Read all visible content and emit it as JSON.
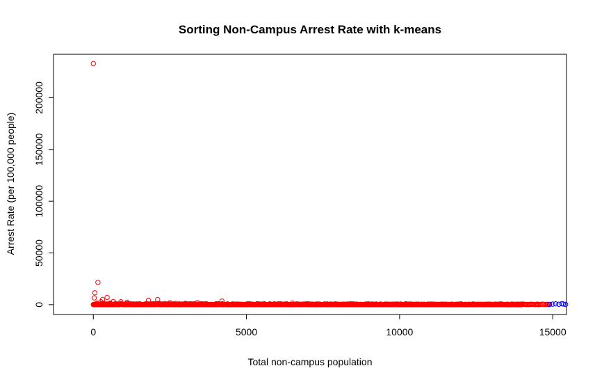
{
  "chart_data": {
    "type": "scatter",
    "title": "Sorting Non-Campus Arrest Rate with k-means",
    "xlabel": "Total non-campus population",
    "ylabel": "Arrest Rate (per 100,000 people)",
    "xlim": [
      -1300,
      15450
    ],
    "ylim": [
      -9500,
      242000
    ],
    "xticks": [
      0,
      5000,
      10000,
      15000
    ],
    "yticks": [
      0,
      50000,
      100000,
      150000,
      200000
    ],
    "xtick_labels": [
      "0",
      "5000",
      "10000",
      "15000"
    ],
    "ytick_labels": [
      "0",
      "50000",
      "100000",
      "150000",
      "200000"
    ],
    "grid": false,
    "legend": "none",
    "marker": "open-circle",
    "colors": {
      "cluster_1": "#ff0000",
      "cluster_2": "#0000ff"
    },
    "series": [
      {
        "color": "#ff0000",
        "points": [
          [
            0,
            233000
          ],
          [
            150,
            21500
          ],
          [
            50,
            11500
          ],
          [
            30,
            6500
          ],
          [
            300,
            5000
          ],
          [
            450,
            7000
          ],
          [
            2100,
            5000
          ],
          [
            1800,
            4200
          ],
          [
            4200,
            3500
          ],
          [
            650,
            3000
          ],
          [
            900,
            2800
          ],
          [
            250,
            2800
          ],
          [
            1100,
            2300
          ],
          [
            3400,
            2000
          ],
          [
            2500,
            1800
          ],
          [
            120,
            1500
          ],
          [
            550,
            1500
          ],
          [
            2700,
            1200
          ],
          [
            6500,
            1500
          ],
          [
            3000,
            1200
          ],
          [
            8400,
            1000
          ],
          [
            10200,
            900
          ],
          [
            12000,
            800
          ],
          [
            13300,
            800
          ],
          [
            1500,
            900
          ],
          [
            3700,
            700
          ],
          [
            5100,
            600
          ],
          [
            7300,
            700
          ],
          [
            9100,
            600
          ],
          [
            11000,
            600
          ],
          [
            12400,
            700
          ],
          [
            14000,
            600
          ],
          [
            14500,
            500
          ],
          [
            14300,
            300
          ],
          [
            14700,
            400
          ],
          [
            13700,
            500
          ]
        ],
        "band": {
          "x_start": 0,
          "x_end": 14000,
          "y_min": 0,
          "y_max": 1200
        },
        "tail": {
          "x_start": 12500,
          "x_end": 14900,
          "y_min": 0,
          "y_max": 500
        }
      },
      {
        "color": "#0000ff",
        "points": [
          [
            14900,
            300
          ],
          [
            15000,
            500
          ],
          [
            15100,
            800
          ],
          [
            15200,
            400
          ],
          [
            15300,
            1000
          ],
          [
            15350,
            600
          ],
          [
            15420,
            300
          ]
        ]
      }
    ]
  }
}
